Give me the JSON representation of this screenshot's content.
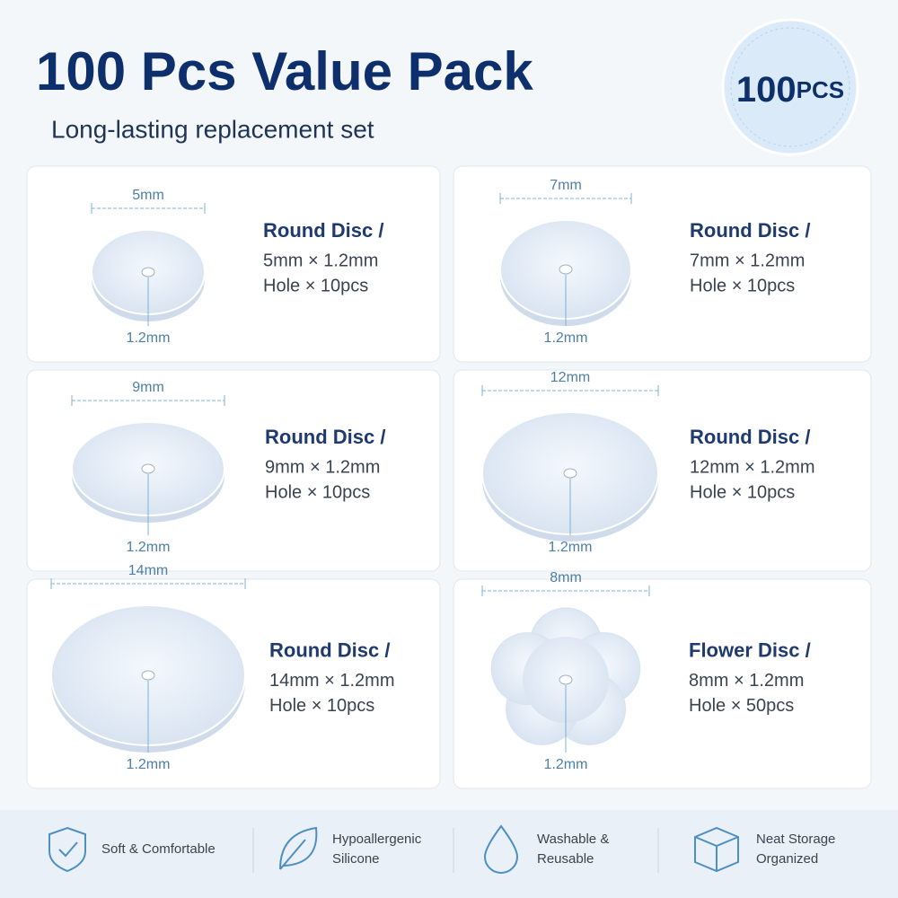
{
  "header": {
    "title": "100 Pcs Value Pack",
    "subtitle": "Long-lasting replacement set"
  },
  "badge": {
    "number": "100",
    "unit": "PCS"
  },
  "items": [
    {
      "width": "5mm",
      "hole": "1.2mm",
      "name": "Round Disc /",
      "size": "5mm × 1.2mm",
      "quantity": "Hole × 10pcs"
    },
    {
      "width": "7mm",
      "hole": "1.2mm",
      "name": "Round Disc /",
      "size": "7mm × 1.2mm",
      "quantity": "Hole × 10pcs"
    },
    {
      "width": "9mm",
      "hole": "1.2mm",
      "name": "Round Disc /",
      "size": "9mm × 1.2mm",
      "quantity": "Hole × 10pcs"
    },
    {
      "width": "12mm",
      "hole": "1.2mm",
      "name": "Round Disc /",
      "size": "12mm × 1.2mm",
      "quantity": "Hole × 10pcs"
    },
    {
      "width": "14mm",
      "hole": "1.2mm",
      "name": "Round Disc /",
      "size": "14mm × 1.2mm",
      "quantity": "Hole × 10pcs"
    },
    {
      "width": "8mm",
      "hole": "1.2mm",
      "name": "Flower Disc /",
      "size": "8mm × 1.2mm",
      "quantity": "Hole × 50pcs"
    }
  ],
  "features": [
    {
      "lines": [
        "Soft & Comfortable"
      ]
    },
    {
      "lines": [
        "Hypoallergenic",
        "Silicone"
      ]
    },
    {
      "lines": [
        "Washable &",
        "Reusable"
      ]
    },
    {
      "lines": [
        "Neat Storage",
        "Organized"
      ]
    }
  ]
}
